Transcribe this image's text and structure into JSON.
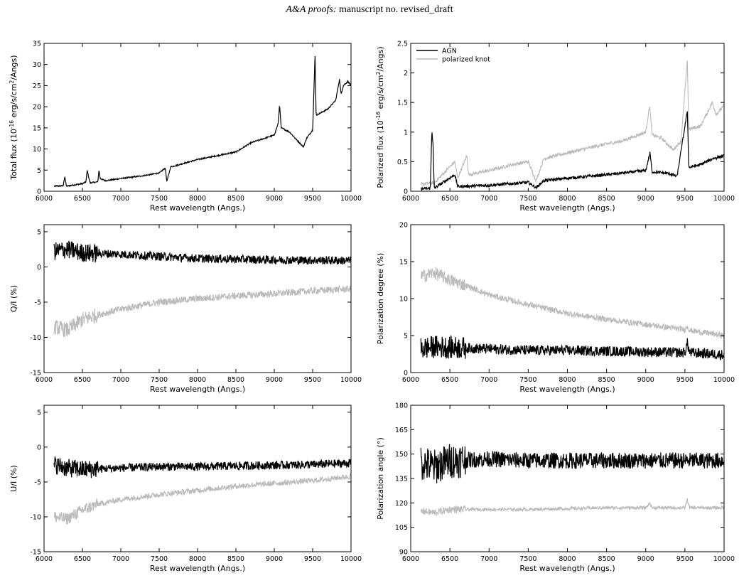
{
  "header": {
    "journal": "A&A proofs:",
    "manuscript": "manuscript no. revised_draft"
  },
  "colors": {
    "agn": "#000000",
    "knot": "#bbbbbb",
    "axis": "#000000"
  },
  "chart_data": [
    {
      "type": "line",
      "xlabel": "Rest wavelength (Angs.)",
      "ylabel_pre": "Total flux (10",
      "ylabel_sup": "-16",
      "ylabel_mid": " erg/s/cm",
      "ylabel_sup2": "2",
      "ylabel_post": "/Angs)",
      "xlim": [
        6000,
        10000
      ],
      "ylim": [
        0,
        35
      ],
      "xticks": [
        6000,
        6500,
        7000,
        7500,
        8000,
        8500,
        9000,
        9500,
        10000
      ],
      "yticks": [
        0,
        5,
        10,
        15,
        20,
        25,
        30,
        35
      ],
      "series": [
        {
          "key": "agn",
          "points": [
            [
              6130,
              1.2
            ],
            [
              6250,
              1.3
            ],
            [
              6270,
              3.6
            ],
            [
              6290,
              1.2
            ],
            [
              6500,
              1.8
            ],
            [
              6545,
              2.2
            ],
            [
              6563,
              5.0
            ],
            [
              6583,
              3.2
            ],
            [
              6600,
              2.0
            ],
            [
              6700,
              2.2
            ],
            [
              6716,
              5.0
            ],
            [
              6731,
              3.0
            ],
            [
              6800,
              2.5
            ],
            [
              7000,
              3.0
            ],
            [
              7300,
              3.7
            ],
            [
              7500,
              4.3
            ],
            [
              7580,
              5.5
            ],
            [
              7600,
              2.3
            ],
            [
              7650,
              5.8
            ],
            [
              7700,
              6.0
            ],
            [
              8000,
              7.5
            ],
            [
              8500,
              9.3
            ],
            [
              8700,
              11.5
            ],
            [
              9000,
              13.3
            ],
            [
              9050,
              16
            ],
            [
              9069,
              20.5
            ],
            [
              9090,
              15
            ],
            [
              9200,
              14
            ],
            [
              9300,
              12
            ],
            [
              9380,
              10.5
            ],
            [
              9420,
              12.5
            ],
            [
              9500,
              14.5
            ],
            [
              9531,
              32.3
            ],
            [
              9545,
              18
            ],
            [
              9600,
              18.5
            ],
            [
              9700,
              19.5
            ],
            [
              9800,
              21.5
            ],
            [
              9850,
              26.5
            ],
            [
              9870,
              23
            ],
            [
              9900,
              25
            ],
            [
              9960,
              26
            ],
            [
              10000,
              25
            ]
          ]
        }
      ]
    },
    {
      "type": "line",
      "xlabel": "Rest wavelength (Angs.)",
      "ylabel_pre": "Polarized flux (10",
      "ylabel_sup": "-16",
      "ylabel_mid": " erg/s/cm",
      "ylabel_sup2": "2",
      "ylabel_post": "/Angs)",
      "xlim": [
        6000,
        10000
      ],
      "ylim": [
        0,
        2.5
      ],
      "xticks": [
        6000,
        6500,
        7000,
        7500,
        8000,
        8500,
        9000,
        9500,
        10000
      ],
      "yticks": [
        0,
        0.5,
        1,
        1.5,
        2,
        2.5
      ],
      "legend": [
        "AGN",
        "polarized knot"
      ],
      "series": [
        {
          "key": "knot",
          "name": "polarized knot",
          "points": [
            [
              6130,
              0.12
            ],
            [
              6300,
              0.14
            ],
            [
              6563,
              0.5
            ],
            [
              6600,
              0.22
            ],
            [
              6716,
              0.6
            ],
            [
              6740,
              0.28
            ],
            [
              7000,
              0.35
            ],
            [
              7300,
              0.45
            ],
            [
              7500,
              0.5
            ],
            [
              7600,
              0.18
            ],
            [
              7700,
              0.55
            ],
            [
              8000,
              0.65
            ],
            [
              8500,
              0.8
            ],
            [
              8700,
              0.85
            ],
            [
              9000,
              1.0
            ],
            [
              9050,
              1.45
            ],
            [
              9080,
              0.95
            ],
            [
              9200,
              0.9
            ],
            [
              9350,
              0.7
            ],
            [
              9450,
              0.85
            ],
            [
              9531,
              2.2
            ],
            [
              9550,
              1.05
            ],
            [
              9700,
              1.1
            ],
            [
              9850,
              1.5
            ],
            [
              9900,
              1.3
            ],
            [
              10000,
              1.45
            ]
          ]
        },
        {
          "key": "agn",
          "name": "AGN",
          "points": [
            [
              6130,
              0.04
            ],
            [
              6250,
              0.05
            ],
            [
              6270,
              1.04
            ],
            [
              6285,
              0.78
            ],
            [
              6300,
              0.05
            ],
            [
              6563,
              0.28
            ],
            [
              6600,
              0.08
            ],
            [
              7000,
              0.1
            ],
            [
              7500,
              0.15
            ],
            [
              7600,
              0.06
            ],
            [
              7700,
              0.18
            ],
            [
              8000,
              0.22
            ],
            [
              8500,
              0.28
            ],
            [
              9000,
              0.35
            ],
            [
              9055,
              0.65
            ],
            [
              9080,
              0.33
            ],
            [
              9300,
              0.3
            ],
            [
              9400,
              0.25
            ],
            [
              9531,
              1.36
            ],
            [
              9550,
              0.4
            ],
            [
              9700,
              0.45
            ],
            [
              9850,
              0.55
            ],
            [
              10000,
              0.6
            ]
          ]
        }
      ]
    },
    {
      "type": "line",
      "xlabel": "Rest wavelength (Angs.)",
      "ylabel": "Q/I (%)",
      "xlim": [
        6000,
        10000
      ],
      "ylim": [
        -15,
        6
      ],
      "xticks": [
        6000,
        6500,
        7000,
        7500,
        8000,
        8500,
        9000,
        9500,
        10000
      ],
      "yticks": [
        -15,
        -10,
        -5,
        0,
        5
      ],
      "series": [
        {
          "key": "knot",
          "points": [
            [
              6130,
              -8.5
            ],
            [
              6300,
              -9.0
            ],
            [
              6500,
              -7.5
            ],
            [
              6700,
              -6.8
            ],
            [
              7000,
              -6.0
            ],
            [
              7500,
              -5.0
            ],
            [
              8000,
              -4.5
            ],
            [
              8500,
              -4.1
            ],
            [
              9000,
              -3.8
            ],
            [
              9500,
              -3.4
            ],
            [
              10000,
              -3.1
            ]
          ]
        },
        {
          "key": "agn",
          "points": [
            [
              6130,
              2.2
            ],
            [
              6300,
              2.5
            ],
            [
              6500,
              2.0
            ],
            [
              7000,
              1.8
            ],
            [
              7500,
              1.5
            ],
            [
              8000,
              1.2
            ],
            [
              8500,
              1.1
            ],
            [
              9000,
              1.0
            ],
            [
              9500,
              0.95
            ],
            [
              10000,
              0.9
            ]
          ]
        }
      ]
    },
    {
      "type": "line",
      "xlabel": "Rest wavelength (Angs.)",
      "ylabel": "Polarization degree (%)",
      "xlim": [
        6000,
        10000
      ],
      "ylim": [
        0,
        20
      ],
      "xticks": [
        6000,
        6500,
        7000,
        7500,
        8000,
        8500,
        9000,
        9500,
        10000
      ],
      "yticks": [
        0,
        5,
        10,
        15,
        20
      ],
      "series": [
        {
          "key": "knot",
          "points": [
            [
              6130,
              13.0
            ],
            [
              6300,
              13.5
            ],
            [
              6500,
              12.5
            ],
            [
              6700,
              11.8
            ],
            [
              7000,
              10.5
            ],
            [
              7500,
              9.2
            ],
            [
              8000,
              8.0
            ],
            [
              8500,
              7.2
            ],
            [
              9000,
              6.5
            ],
            [
              9500,
              5.8
            ],
            [
              9531,
              6.3
            ],
            [
              9560,
              5.7
            ],
            [
              10000,
              5.0
            ]
          ]
        },
        {
          "key": "agn",
          "points": [
            [
              6130,
              3.2
            ],
            [
              6300,
              3.5
            ],
            [
              6500,
              3.4
            ],
            [
              7000,
              3.2
            ],
            [
              7500,
              3.0
            ],
            [
              8000,
              3.0
            ],
            [
              8500,
              2.9
            ],
            [
              9000,
              2.8
            ],
            [
              9500,
              2.7
            ],
            [
              9531,
              4.0
            ],
            [
              9560,
              2.7
            ],
            [
              10000,
              2.4
            ]
          ]
        }
      ]
    },
    {
      "type": "line",
      "xlabel": "Rest wavelength (Angs.)",
      "ylabel": "U/I (%)",
      "xlim": [
        6000,
        10000
      ],
      "ylim": [
        -15,
        6
      ],
      "xticks": [
        6000,
        6500,
        7000,
        7500,
        8000,
        8500,
        9000,
        9500,
        10000
      ],
      "yticks": [
        -15,
        -10,
        -5,
        0,
        5
      ],
      "series": [
        {
          "key": "knot",
          "points": [
            [
              6130,
              -10.0
            ],
            [
              6300,
              -10.3
            ],
            [
              6500,
              -9.0
            ],
            [
              6700,
              -8.2
            ],
            [
              7000,
              -7.5
            ],
            [
              7500,
              -6.8
            ],
            [
              8000,
              -6.2
            ],
            [
              8500,
              -5.6
            ],
            [
              9000,
              -5.2
            ],
            [
              9500,
              -4.8
            ],
            [
              10000,
              -4.2
            ]
          ]
        },
        {
          "key": "agn",
          "points": [
            [
              6130,
              -2.5
            ],
            [
              6300,
              -3.0
            ],
            [
              6500,
              -3.2
            ],
            [
              7000,
              -3.0
            ],
            [
              7500,
              -2.8
            ],
            [
              8000,
              -2.8
            ],
            [
              8500,
              -2.7
            ],
            [
              9000,
              -2.6
            ],
            [
              9500,
              -2.5
            ],
            [
              10000,
              -2.3
            ]
          ]
        }
      ]
    },
    {
      "type": "line",
      "xlabel": "Rest wavelength (Angs.)",
      "ylabel": "Polarization angle (°)",
      "xlim": [
        6000,
        10000
      ],
      "ylim": [
        90,
        180
      ],
      "xticks": [
        6000,
        6500,
        7000,
        7500,
        8000,
        8500,
        9000,
        9500,
        10000
      ],
      "yticks": [
        90,
        105,
        120,
        135,
        150,
        165,
        180
      ],
      "series": [
        {
          "key": "knot",
          "points": [
            [
              6130,
              115
            ],
            [
              6300,
              114
            ],
            [
              6500,
              116
            ],
            [
              7000,
              116
            ],
            [
              7500,
              116
            ],
            [
              8000,
              116.5
            ],
            [
              8500,
              117
            ],
            [
              9000,
              117
            ],
            [
              9055,
              120
            ],
            [
              9080,
              117
            ],
            [
              9500,
              117
            ],
            [
              9531,
              122
            ],
            [
              9560,
              117
            ],
            [
              10000,
              117
            ]
          ]
        },
        {
          "key": "agn",
          "points": [
            [
              6130,
              145
            ],
            [
              6300,
              142
            ],
            [
              6500,
              146
            ],
            [
              7000,
              147
            ],
            [
              7500,
              146
            ],
            [
              8000,
              146
            ],
            [
              8500,
              146
            ],
            [
              9000,
              146
            ],
            [
              9500,
              146
            ],
            [
              10000,
              146
            ]
          ]
        }
      ]
    }
  ]
}
